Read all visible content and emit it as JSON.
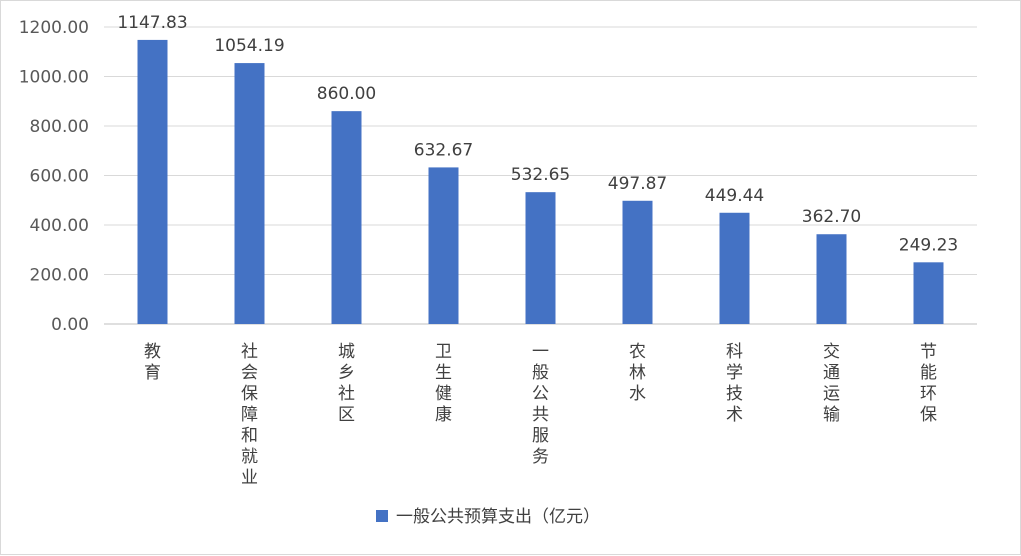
{
  "colors": {
    "bar": "#4472c4",
    "grid": "#d9d9d9",
    "axis": "#bfbfbf",
    "text": "#404040"
  },
  "legend": {
    "label": "一般公共预算支出（亿元）",
    "position": "bottom-center"
  },
  "chart_data": {
    "type": "bar",
    "title": "",
    "xlabel": "",
    "ylabel": "",
    "ylim": [
      0,
      1200
    ],
    "y_ticks": [
      "0.00",
      "200.00",
      "400.00",
      "600.00",
      "800.00",
      "1000.00",
      "1200.00"
    ],
    "grid": true,
    "categories": [
      "教育",
      "社会保障和就业",
      "城乡社区",
      "卫生健康",
      "一般公共服务",
      "农林水",
      "科学技术",
      "交通运输",
      "节能环保"
    ],
    "series": [
      {
        "name": "一般公共预算支出（亿元）",
        "values": [
          1147.83,
          1054.19,
          860.0,
          632.67,
          532.65,
          497.87,
          449.44,
          362.7,
          249.23
        ],
        "labels": [
          "1147.83",
          "1054.19",
          "860.00",
          "632.67",
          "532.65",
          "497.87",
          "449.44",
          "362.70",
          "249.23"
        ]
      }
    ]
  }
}
